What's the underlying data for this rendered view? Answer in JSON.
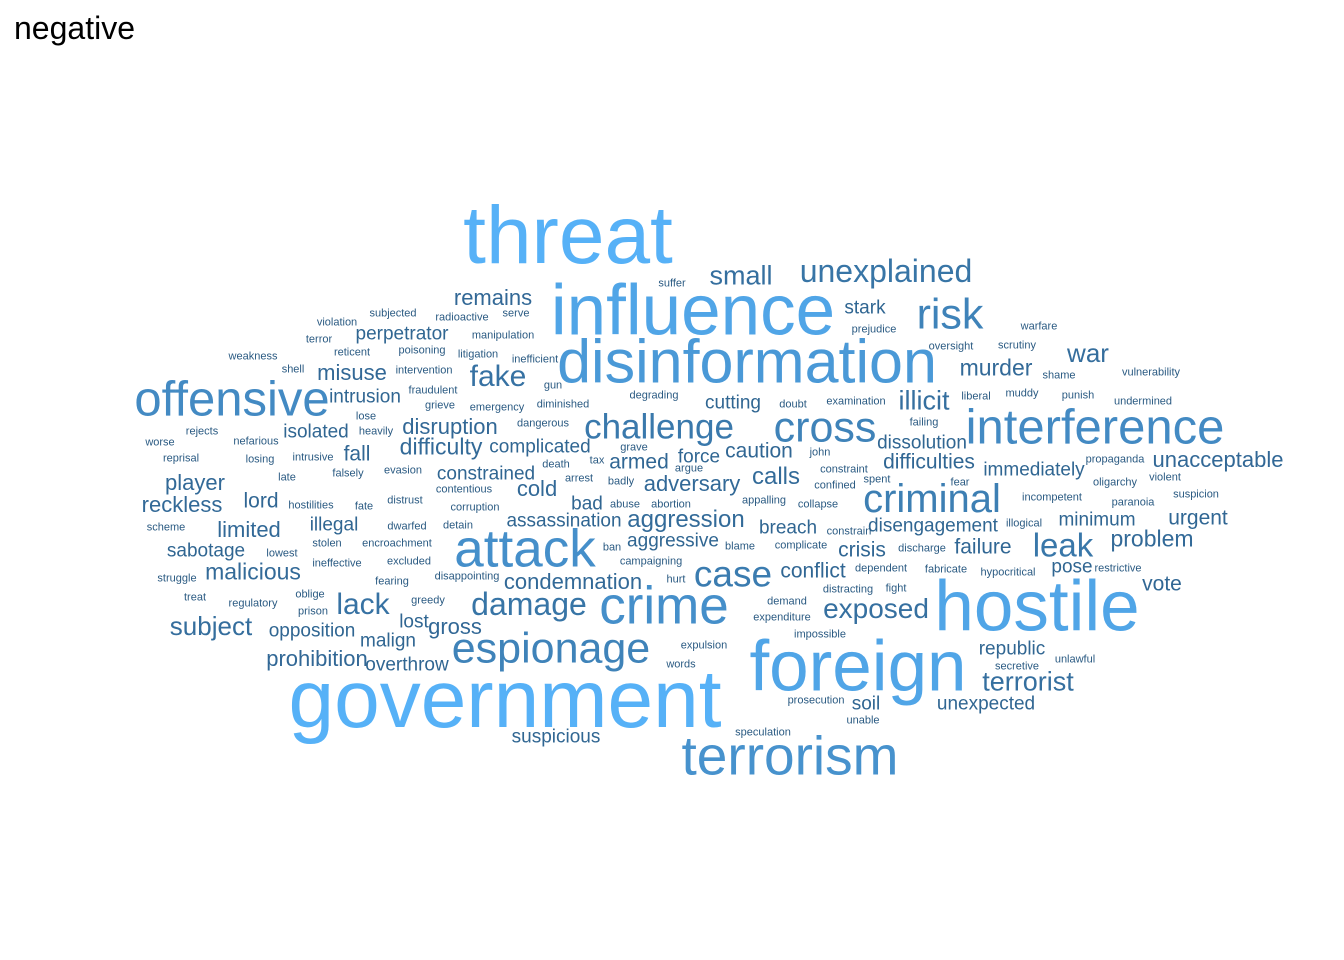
{
  "title": "negative",
  "palette": {
    "low": "#132B43",
    "high": "#56B1F7"
  },
  "words": [
    {
      "text": "threat",
      "freq": 100
    },
    {
      "text": "government",
      "freq": 100
    },
    {
      "text": "influence",
      "freq": 88
    },
    {
      "text": "foreign",
      "freq": 88
    },
    {
      "text": "hostile",
      "freq": 88
    },
    {
      "text": "disinformation",
      "freq": 75
    },
    {
      "text": "terrorism",
      "freq": 68
    },
    {
      "text": "attack",
      "freq": 65
    },
    {
      "text": "crime",
      "freq": 65
    },
    {
      "text": "interference",
      "freq": 60
    },
    {
      "text": "offensive",
      "freq": 60
    },
    {
      "text": "espionage",
      "freq": 52
    },
    {
      "text": "risk",
      "freq": 52
    },
    {
      "text": "cross",
      "freq": 52
    },
    {
      "text": "criminal",
      "freq": 48
    },
    {
      "text": "case",
      "freq": 45
    },
    {
      "text": "challenge",
      "freq": 42
    },
    {
      "text": "leak",
      "freq": 40
    },
    {
      "text": "damage",
      "freq": 38
    },
    {
      "text": "unexplained",
      "freq": 38
    },
    {
      "text": "fake",
      "freq": 35
    },
    {
      "text": "lack",
      "freq": 35
    },
    {
      "text": "exposed",
      "freq": 33
    },
    {
      "text": "terrorist",
      "freq": 32
    },
    {
      "text": "small",
      "freq": 32
    },
    {
      "text": "illicit",
      "freq": 32
    },
    {
      "text": "subject",
      "freq": 31
    },
    {
      "text": "war",
      "freq": 31
    },
    {
      "text": "aggression",
      "freq": 28
    },
    {
      "text": "calls",
      "freq": 28
    },
    {
      "text": "malicious",
      "freq": 27
    },
    {
      "text": "difficulty",
      "freq": 27
    },
    {
      "text": "murder",
      "freq": 27
    },
    {
      "text": "problem",
      "freq": 27
    },
    {
      "text": "adversary",
      "freq": 26
    },
    {
      "text": "cold",
      "freq": 26
    },
    {
      "text": "condemnation",
      "freq": 26
    },
    {
      "text": "limited",
      "freq": 26
    },
    {
      "text": "player",
      "freq": 26
    },
    {
      "text": "reckless",
      "freq": 26
    },
    {
      "text": "remains",
      "freq": 25
    },
    {
      "text": "misuse",
      "freq": 25
    },
    {
      "text": "disruption",
      "freq": 25
    },
    {
      "text": "gross",
      "freq": 25
    },
    {
      "text": "prohibition",
      "freq": 25
    },
    {
      "text": "unacceptable",
      "freq": 25
    },
    {
      "text": "difficulties",
      "freq": 24
    },
    {
      "text": "caution",
      "freq": 24
    },
    {
      "text": "armed",
      "freq": 24
    },
    {
      "text": "conflict",
      "freq": 24
    },
    {
      "text": "urgent",
      "freq": 24
    },
    {
      "text": "crisis",
      "freq": 24
    },
    {
      "text": "failure",
      "freq": 24
    },
    {
      "text": "vote",
      "freq": 24
    },
    {
      "text": "lord",
      "freq": 24
    },
    {
      "text": "fall",
      "freq": 24
    },
    {
      "text": "sabotage",
      "freq": 22
    },
    {
      "text": "isolated",
      "freq": 22
    },
    {
      "text": "intrusion",
      "freq": 22
    },
    {
      "text": "perpetrator",
      "freq": 22
    },
    {
      "text": "cutting",
      "freq": 22
    },
    {
      "text": "constrained",
      "freq": 22
    },
    {
      "text": "complicated",
      "freq": 22
    },
    {
      "text": "immediately",
      "freq": 22
    },
    {
      "text": "disengagement",
      "freq": 22
    },
    {
      "text": "breach",
      "freq": 22
    },
    {
      "text": "assassination",
      "freq": 22
    },
    {
      "text": "aggressive",
      "freq": 22
    },
    {
      "text": "opposition",
      "freq": 22
    },
    {
      "text": "overthrow",
      "freq": 22
    },
    {
      "text": "illegal",
      "freq": 22
    },
    {
      "text": "malign",
      "freq": 22
    },
    {
      "text": "lost",
      "freq": 22
    },
    {
      "text": "stark",
      "freq": 22
    },
    {
      "text": "force",
      "freq": 22
    },
    {
      "text": "bad",
      "freq": 22
    },
    {
      "text": "dissolution",
      "freq": 22
    },
    {
      "text": "minimum",
      "freq": 22
    },
    {
      "text": "republic",
      "freq": 22
    },
    {
      "text": "unexpected",
      "freq": 22
    },
    {
      "text": "pose",
      "freq": 22
    },
    {
      "text": "soil",
      "freq": 22
    },
    {
      "text": "suspicious",
      "freq": 22
    },
    {
      "text": "violation",
      "freq": 10
    },
    {
      "text": "subjected",
      "freq": 10
    },
    {
      "text": "radioactive",
      "freq": 10
    },
    {
      "text": "serve",
      "freq": 10
    },
    {
      "text": "suffer",
      "freq": 10
    },
    {
      "text": "terror",
      "freq": 10
    },
    {
      "text": "reticent",
      "freq": 10
    },
    {
      "text": "poisoning",
      "freq": 10
    },
    {
      "text": "litigation",
      "freq": 10
    },
    {
      "text": "manipulation",
      "freq": 10
    },
    {
      "text": "inefficient",
      "freq": 10
    },
    {
      "text": "weakness",
      "freq": 10
    },
    {
      "text": "shell",
      "freq": 10
    },
    {
      "text": "intervention",
      "freq": 10
    },
    {
      "text": "gun",
      "freq": 10
    },
    {
      "text": "fraudulent",
      "freq": 10
    },
    {
      "text": "degrading",
      "freq": 10
    },
    {
      "text": "lose",
      "freq": 10
    },
    {
      "text": "grieve",
      "freq": 10
    },
    {
      "text": "emergency",
      "freq": 10
    },
    {
      "text": "diminished",
      "freq": 10
    },
    {
      "text": "heavily",
      "freq": 10
    },
    {
      "text": "dangerous",
      "freq": 10
    },
    {
      "text": "rejects",
      "freq": 10
    },
    {
      "text": "worse",
      "freq": 10
    },
    {
      "text": "nefarious",
      "freq": 10
    },
    {
      "text": "reprisal",
      "freq": 10
    },
    {
      "text": "losing",
      "freq": 10
    },
    {
      "text": "intrusive",
      "freq": 10
    },
    {
      "text": "death",
      "freq": 10
    },
    {
      "text": "late",
      "freq": 10
    },
    {
      "text": "falsely",
      "freq": 10
    },
    {
      "text": "evasion",
      "freq": 10
    },
    {
      "text": "arrest",
      "freq": 10
    },
    {
      "text": "tax",
      "freq": 10
    },
    {
      "text": "badly",
      "freq": 10
    },
    {
      "text": "contentious",
      "freq": 10
    },
    {
      "text": "hostilities",
      "freq": 10
    },
    {
      "text": "fate",
      "freq": 10
    },
    {
      "text": "distrust",
      "freq": 10
    },
    {
      "text": "corruption",
      "freq": 10
    },
    {
      "text": "abuse",
      "freq": 10
    },
    {
      "text": "abortion",
      "freq": 10
    },
    {
      "text": "scheme",
      "freq": 10
    },
    {
      "text": "dwarfed",
      "freq": 10
    },
    {
      "text": "detain",
      "freq": 10
    },
    {
      "text": "stolen",
      "freq": 10
    },
    {
      "text": "encroachment",
      "freq": 10
    },
    {
      "text": "ban",
      "freq": 10
    },
    {
      "text": "lowest",
      "freq": 10
    },
    {
      "text": "ineffective",
      "freq": 10
    },
    {
      "text": "excluded",
      "freq": 10
    },
    {
      "text": "campaigning",
      "freq": 10
    },
    {
      "text": "struggle",
      "freq": 10
    },
    {
      "text": "fearing",
      "freq": 10
    },
    {
      "text": "disappointing",
      "freq": 10
    },
    {
      "text": "hurt",
      "freq": 10
    },
    {
      "text": "treat",
      "freq": 10
    },
    {
      "text": "oblige",
      "freq": 10
    },
    {
      "text": "regulatory",
      "freq": 10
    },
    {
      "text": "greedy",
      "freq": 10
    },
    {
      "text": "prison",
      "freq": 10
    },
    {
      "text": "grave",
      "freq": 10
    },
    {
      "text": "argue",
      "freq": 10
    },
    {
      "text": "doubt",
      "freq": 10
    },
    {
      "text": "examination",
      "freq": 10
    },
    {
      "text": "john",
      "freq": 10
    },
    {
      "text": "appalling",
      "freq": 10
    },
    {
      "text": "collapse",
      "freq": 10
    },
    {
      "text": "blame",
      "freq": 10
    },
    {
      "text": "complicate",
      "freq": 10
    },
    {
      "text": "demand",
      "freq": 10
    },
    {
      "text": "expenditure",
      "freq": 10
    },
    {
      "text": "impossible",
      "freq": 10
    },
    {
      "text": "expulsion",
      "freq": 10
    },
    {
      "text": "words",
      "freq": 10
    },
    {
      "text": "prosecution",
      "freq": 10
    },
    {
      "text": "unable",
      "freq": 10
    },
    {
      "text": "speculation",
      "freq": 10
    },
    {
      "text": "distracting",
      "freq": 10
    },
    {
      "text": "fight",
      "freq": 10
    },
    {
      "text": "constraint",
      "freq": 10
    },
    {
      "text": "confined",
      "freq": 10
    },
    {
      "text": "spent",
      "freq": 10
    },
    {
      "text": "constrain",
      "freq": 10
    },
    {
      "text": "discharge",
      "freq": 10
    },
    {
      "text": "dependent",
      "freq": 10
    },
    {
      "text": "fabricate",
      "freq": 10
    },
    {
      "text": "prejudice",
      "freq": 10
    },
    {
      "text": "oversight",
      "freq": 10
    },
    {
      "text": "failing",
      "freq": 10
    },
    {
      "text": "fear",
      "freq": 10
    },
    {
      "text": "liberal",
      "freq": 10
    },
    {
      "text": "scrutiny",
      "freq": 10
    },
    {
      "text": "warfare",
      "freq": 10
    },
    {
      "text": "muddy",
      "freq": 10
    },
    {
      "text": "shame",
      "freq": 10
    },
    {
      "text": "punish",
      "freq": 10
    },
    {
      "text": "vulnerability",
      "freq": 10
    },
    {
      "text": "undermined",
      "freq": 10
    },
    {
      "text": "propaganda",
      "freq": 10
    },
    {
      "text": "oligarchy",
      "freq": 10
    },
    {
      "text": "violent",
      "freq": 10
    },
    {
      "text": "incompetent",
      "freq": 10
    },
    {
      "text": "paranoia",
      "freq": 10
    },
    {
      "text": "suspicion",
      "freq": 10
    },
    {
      "text": "illogical",
      "freq": 10
    },
    {
      "text": "hypocritical",
      "freq": 10
    },
    {
      "text": "restrictive",
      "freq": 10
    },
    {
      "text": "secretive",
      "freq": 10
    },
    {
      "text": "unlawful",
      "freq": 10
    }
  ]
}
